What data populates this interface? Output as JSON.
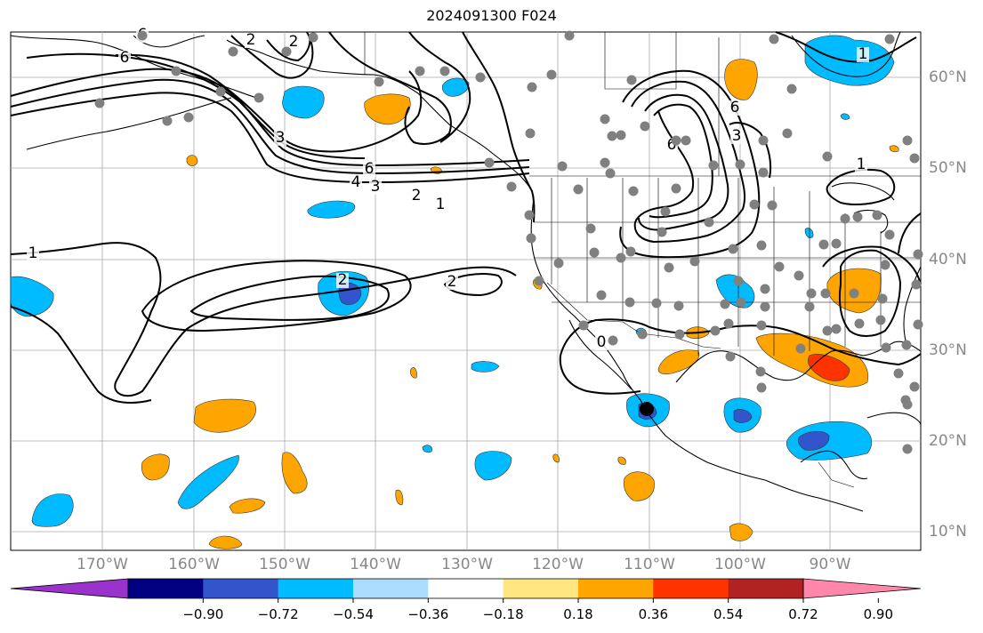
{
  "title": "2024091300 F024",
  "axes": {
    "lon_ticks": [
      "170°W",
      "160°W",
      "150°W",
      "140°W",
      "130°W",
      "120°W",
      "110°W",
      "100°W",
      "90°W"
    ],
    "lat_ticks": [
      "60°N",
      "50°N",
      "40°N",
      "30°N",
      "20°N",
      "10°N"
    ]
  },
  "contour_labels": [
    "6",
    "6",
    "6",
    "4",
    "3",
    "3",
    "2",
    "2",
    "2",
    "2",
    "2",
    "1",
    "1",
    "1",
    "1",
    "6",
    "3",
    "0",
    "6"
  ],
  "colorbar": {
    "tick_labels": [
      "−0.90",
      "−0.72",
      "−0.54",
      "−0.36",
      "−0.18",
      "0.18",
      "0.36",
      "0.54",
      "0.72",
      "0.90"
    ],
    "colors": [
      "#9933cc",
      "#000080",
      "#3355cc",
      "#00bbff",
      "#aaddff",
      "#ffffff",
      "#ffe680",
      "#ffa500",
      "#ff3300",
      "#b22222",
      "#ff88aa"
    ]
  },
  "colors": {
    "strong_negative": "#3355cc",
    "negative": "#00bbff",
    "positive": "#ffa500",
    "strong_positive": "#ff3300",
    "station_dot": "#808080",
    "grid": "#aaaaaa"
  }
}
